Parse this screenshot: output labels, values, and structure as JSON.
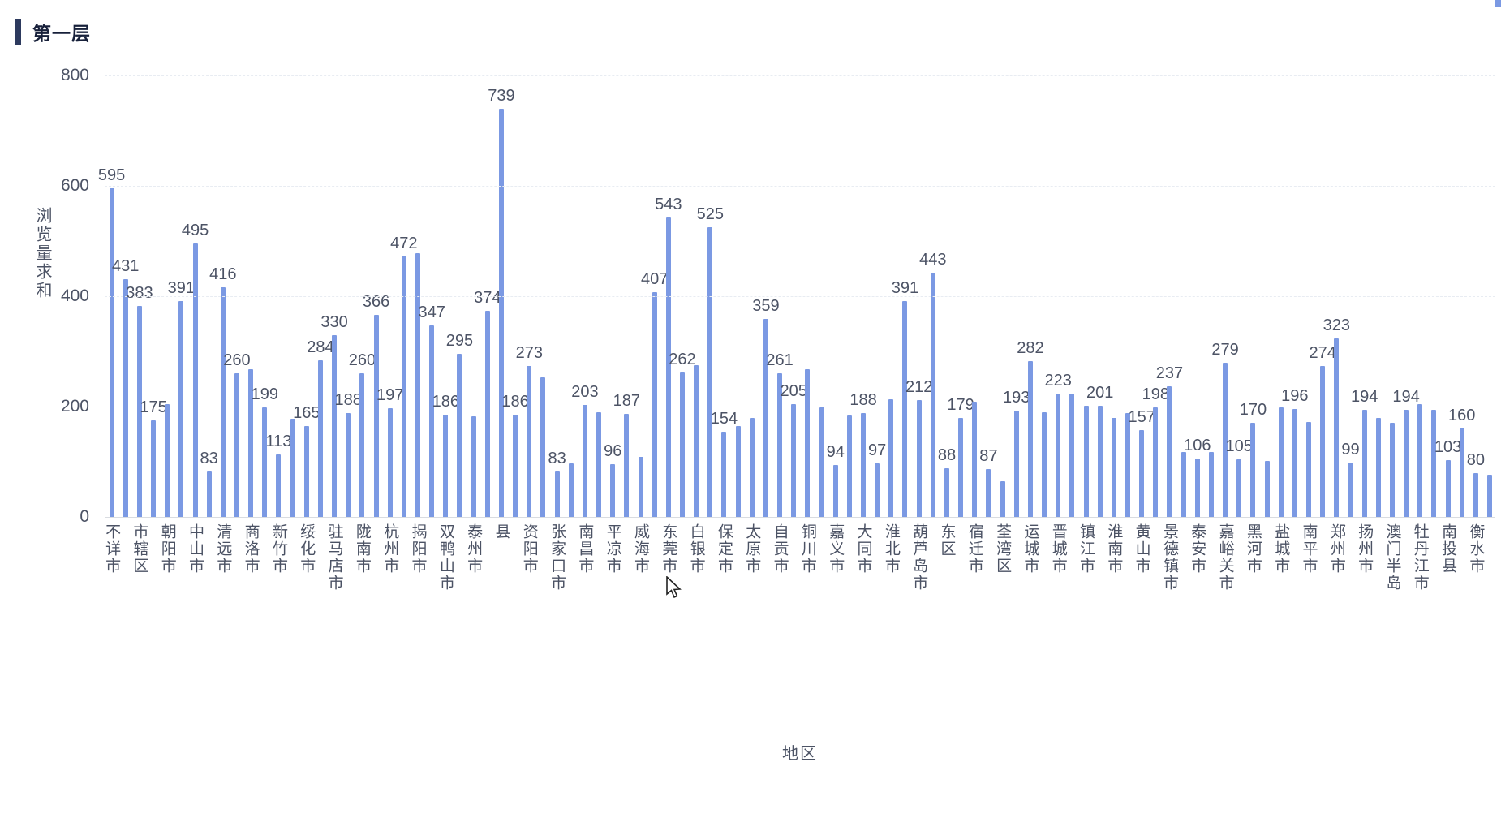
{
  "title": "第一层",
  "chart_data": {
    "type": "bar",
    "title": "第一层",
    "xlabel": "地区",
    "ylabel": "浏览量求和",
    "ylim": [
      0,
      800
    ],
    "y_ticks": [
      0,
      200,
      400,
      600,
      800
    ],
    "grid": "dashed-horizontal",
    "bar_color": "#7b99e3",
    "label_color": "#4c5365",
    "accent_color": "#2d3a5e",
    "axis_label_note": "category labels shown under every 2nd bar, vertical CJK text",
    "categories": [
      "不详市",
      "市辖区",
      "朝阳市",
      "中山市",
      "清远市",
      "商洛市",
      "新竹市",
      "绥化市",
      "驻马店市",
      "陇南市",
      "杭州市",
      "揭阳市",
      "双鸭山市",
      "泰州市",
      "县",
      "资阳市",
      "张家口市",
      "南昌市",
      "平凉市",
      "威海市",
      "东莞市",
      "白银市",
      "保定市",
      "太原市",
      "自贡市",
      "铜川市",
      "嘉义市",
      "大同市",
      "淮北市",
      "葫芦岛市",
      "东区",
      "宿迁市",
      "荃湾区",
      "运城市",
      "晋城市",
      "镇江市",
      "淮南市",
      "黄山市",
      "景德镇市",
      "泰安市",
      "嘉峪关市",
      "黑河市",
      "盐城市",
      "南平市",
      "郑州市",
      "扬州市",
      "澳门半岛",
      "牡丹江市",
      "南投县",
      "衡水市"
    ],
    "series": [
      {
        "name": "浏览量求和",
        "values": [
          595,
          431,
          383,
          175,
          204,
          391,
          495,
          83,
          416,
          260,
          268,
          199,
          113,
          178,
          165,
          284,
          330,
          188,
          260,
          366,
          197,
          472,
          478,
          347,
          186,
          295,
          182,
          374,
          739,
          186,
          273,
          253,
          83,
          97,
          203,
          190,
          96,
          187,
          109,
          407,
          543,
          262,
          275,
          525,
          154,
          165,
          179,
          359,
          261,
          205,
          268,
          199,
          94,
          184,
          188,
          97,
          213,
          391,
          212,
          443,
          88,
          179,
          209,
          87,
          65,
          193,
          282,
          190,
          223,
          224,
          202,
          201,
          179,
          188,
          157,
          198,
          237,
          118,
          106,
          118,
          279,
          105,
          170,
          101,
          199,
          196,
          172,
          274,
          323,
          99,
          194,
          179,
          171,
          194,
          204,
          194,
          103,
          160,
          80,
          76
        ],
        "value_label_visible": [
          true,
          true,
          true,
          true,
          false,
          true,
          true,
          true,
          true,
          true,
          false,
          true,
          true,
          false,
          true,
          true,
          true,
          true,
          true,
          true,
          true,
          true,
          false,
          true,
          true,
          true,
          false,
          true,
          true,
          true,
          true,
          false,
          true,
          false,
          true,
          false,
          true,
          true,
          false,
          true,
          true,
          true,
          false,
          true,
          true,
          false,
          false,
          true,
          true,
          true,
          false,
          false,
          true,
          false,
          true,
          true,
          false,
          true,
          true,
          true,
          true,
          true,
          false,
          true,
          false,
          true,
          true,
          false,
          true,
          false,
          false,
          true,
          false,
          false,
          true,
          true,
          true,
          false,
          true,
          false,
          true,
          true,
          true,
          false,
          false,
          true,
          false,
          true,
          true,
          true,
          true,
          false,
          false,
          true,
          false,
          false,
          true,
          true,
          true,
          false
        ]
      }
    ]
  },
  "cursor": {
    "name": "arrow-pointer"
  },
  "scrollbar": {
    "thumb_color": "#7b99e3"
  }
}
